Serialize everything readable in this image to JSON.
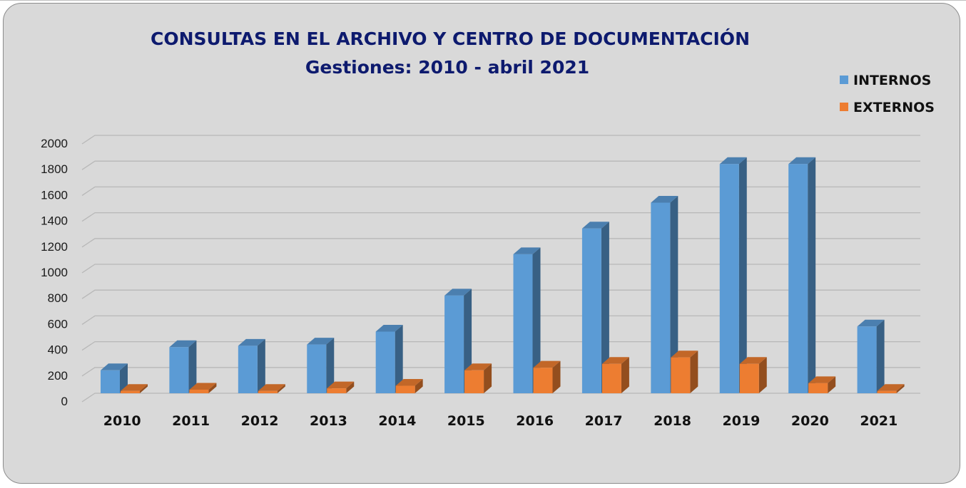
{
  "chart_data": {
    "type": "bar",
    "title": "CONSULTAS EN EL ARCHIVO Y CENTRO DE DOCUMENTACIÓN",
    "subtitle": "Gestiones: 2010 - abril 2021",
    "categories": [
      "2010",
      "2011",
      "2012",
      "2013",
      "2014",
      "2015",
      "2016",
      "2017",
      "2018",
      "2019",
      "2020",
      "2021"
    ],
    "series": [
      {
        "name": "INTERNOS",
        "color": "#5b9bd5",
        "values": [
          200,
          380,
          390,
          400,
          500,
          780,
          1100,
          1300,
          1500,
          1800,
          1800,
          540
        ]
      },
      {
        "name": "EXTERNOS",
        "color": "#ed7d31",
        "values": [
          40,
          50,
          40,
          60,
          80,
          200,
          220,
          250,
          300,
          250,
          100,
          40
        ]
      }
    ],
    "yticks": [
      "0",
      "200",
      "400",
      "600",
      "800",
      "1000",
      "1200",
      "1400",
      "1600",
      "1800",
      "2000"
    ],
    "ylim": [
      0,
      2000
    ],
    "grid": true,
    "legend": "top-right"
  }
}
